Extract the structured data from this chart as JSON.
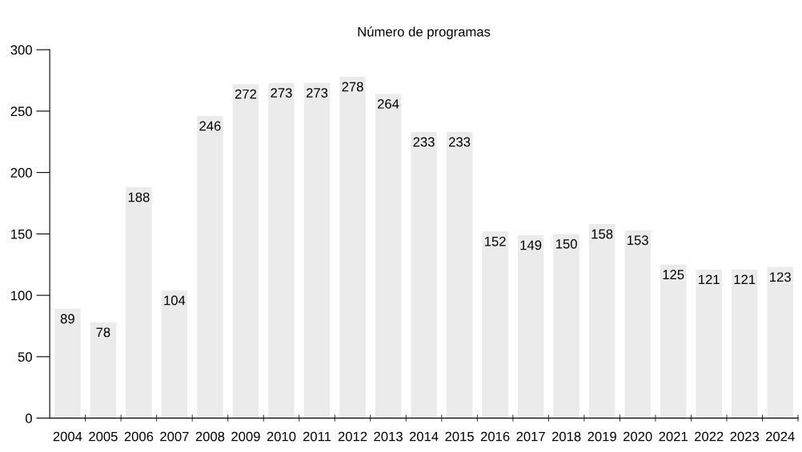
{
  "chart_data": {
    "type": "bar",
    "title": "Número de programas",
    "categories": [
      "2004",
      "2005",
      "2006",
      "2007",
      "2008",
      "2009",
      "2010",
      "2011",
      "2012",
      "2013",
      "2014",
      "2015",
      "2016",
      "2017",
      "2018",
      "2019",
      "2020",
      "2021",
      "2022",
      "2023",
      "2024"
    ],
    "values": [
      89,
      78,
      188,
      104,
      246,
      272,
      273,
      273,
      278,
      264,
      233,
      233,
      152,
      149,
      150,
      158,
      153,
      125,
      121,
      121,
      123
    ],
    "color": "#ebebeb",
    "ylim": [
      0,
      300
    ],
    "yticks": [
      0,
      50,
      100,
      150,
      200,
      250,
      300
    ],
    "data_labels": true,
    "grid": false,
    "legend": false
  }
}
